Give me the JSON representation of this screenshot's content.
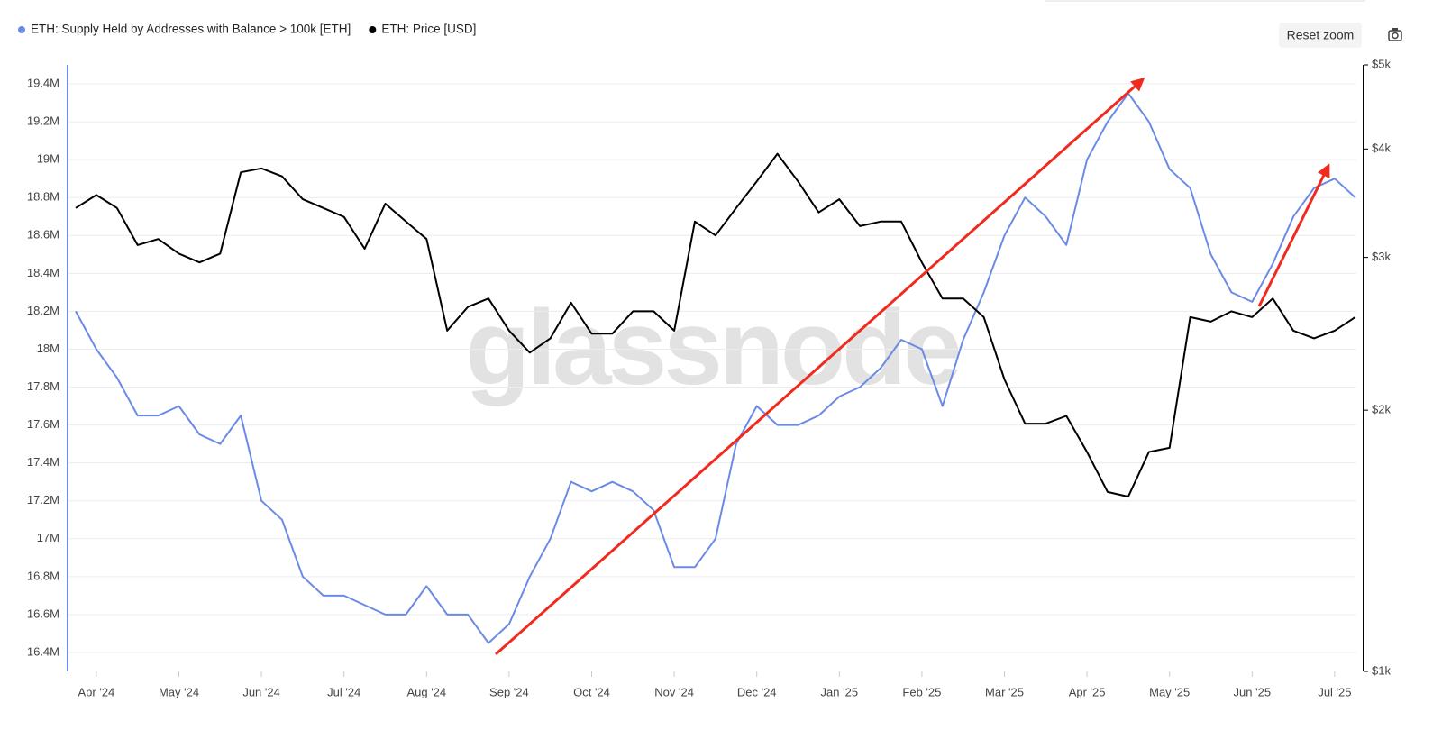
{
  "chart_data": {
    "type": "line",
    "watermark": "glassnode",
    "reset_button": "Reset zoom",
    "categories": [
      null,
      "Apr '24",
      null,
      null,
      null,
      "May '24",
      null,
      null,
      null,
      "Jun '24",
      null,
      null,
      null,
      "Jul '24",
      null,
      null,
      null,
      "Aug '24",
      null,
      null,
      null,
      "Sep '24",
      null,
      null,
      null,
      "Oct '24",
      null,
      null,
      null,
      "Nov '24",
      null,
      null,
      null,
      "Dec '24",
      null,
      null,
      null,
      "Jan '25",
      null,
      null,
      null,
      "Feb '25",
      null,
      null,
      null,
      "Mar '25",
      null,
      null,
      null,
      "Apr '25",
      null,
      null,
      null,
      "May '25",
      null,
      null,
      null,
      "Jun '25",
      null,
      null,
      null,
      "Jul '25",
      null
    ],
    "series": [
      {
        "name": "ETH: Supply Held by Addresses with Balance > 100k [ETH]",
        "color": "#6b8ae6",
        "axis": "y",
        "values": [
          18200000,
          18000000,
          17850000,
          17650000,
          17650000,
          17700000,
          17550000,
          17500000,
          17650000,
          17200000,
          17100000,
          16800000,
          16700000,
          16700000,
          16650000,
          16600000,
          16600000,
          16750000,
          16600000,
          16600000,
          16450000,
          16550000,
          16800000,
          17000000,
          17300000,
          17250000,
          17300000,
          17250000,
          17150000,
          16850000,
          16850000,
          17000000,
          17500000,
          17700000,
          17600000,
          17600000,
          17650000,
          17750000,
          17800000,
          17900000,
          18050000,
          18000000,
          17700000,
          18050000,
          18300000,
          18600000,
          18800000,
          18700000,
          18550000,
          19000000,
          19200000,
          19350000,
          19200000,
          18950000,
          18850000,
          18500000,
          18300000,
          18250000,
          18450000,
          18700000,
          18850000,
          18900000,
          18800000
        ]
      },
      {
        "name": "ETH: Price [USD]",
        "color": "#000000",
        "axis": "y2",
        "values": [
          3420,
          3540,
          3420,
          3100,
          3150,
          3030,
          2960,
          3030,
          3760,
          3800,
          3720,
          3500,
          3420,
          3340,
          3070,
          3460,
          3300,
          3150,
          2470,
          2630,
          2690,
          2470,
          2330,
          2420,
          2660,
          2450,
          2450,
          2600,
          2600,
          2470,
          3300,
          3180,
          3420,
          3670,
          3950,
          3670,
          3380,
          3500,
          3260,
          3300,
          3300,
          2960,
          2690,
          2690,
          2560,
          2170,
          1930,
          1930,
          1970,
          1790,
          1610,
          1590,
          1790,
          1810,
          2560,
          2530,
          2600,
          2560,
          2690,
          2470,
          2420,
          2470,
          2560
        ]
      }
    ],
    "ylim": [
      16300000,
      19500000
    ],
    "yticks": [
      {
        "value": 16400000,
        "label": "16.4M"
      },
      {
        "value": 16600000,
        "label": "16.6M"
      },
      {
        "value": 16800000,
        "label": "16.8M"
      },
      {
        "value": 17000000,
        "label": "17M"
      },
      {
        "value": 17200000,
        "label": "17.2M"
      },
      {
        "value": 17400000,
        "label": "17.4M"
      },
      {
        "value": 17600000,
        "label": "17.6M"
      },
      {
        "value": 17800000,
        "label": "17.8M"
      },
      {
        "value": 18000000,
        "label": "18M"
      },
      {
        "value": 18200000,
        "label": "18.2M"
      },
      {
        "value": 18400000,
        "label": "18.4M"
      },
      {
        "value": 18600000,
        "label": "18.6M"
      },
      {
        "value": 18800000,
        "label": "18.8M"
      },
      {
        "value": 19000000,
        "label": "19M"
      },
      {
        "value": 19200000,
        "label": "19.2M"
      },
      {
        "value": 19400000,
        "label": "19.4M"
      }
    ],
    "y2lim": [
      1000,
      5000
    ],
    "y2log": true,
    "y2ticks": [
      {
        "value": 1000,
        "label": "$1k"
      },
      {
        "value": 2000,
        "label": "$2k"
      },
      {
        "value": 3000,
        "label": "$3k"
      },
      {
        "value": 4000,
        "label": "$4k"
      },
      {
        "value": 5000,
        "label": "$5k"
      }
    ],
    "grid": true
  }
}
